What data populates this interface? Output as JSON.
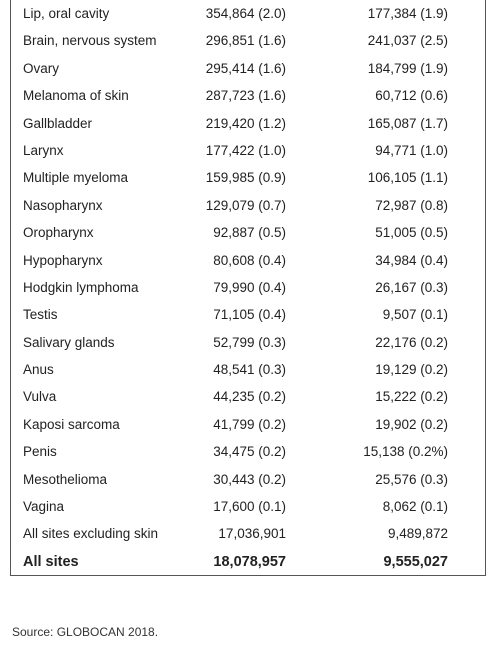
{
  "table": {
    "rows": [
      [
        "Lip, oral cavity",
        "354,864 (2.0)",
        "177,384 (1.9)"
      ],
      [
        "Brain, nervous system",
        "296,851 (1.6)",
        "241,037 (2.5)"
      ],
      [
        "Ovary",
        "295,414 (1.6)",
        "184,799 (1.9)"
      ],
      [
        "Melanoma of skin",
        "287,723 (1.6)",
        "60,712 (0.6)"
      ],
      [
        "Gallbladder",
        "219,420 (1.2)",
        "165,087 (1.7)"
      ],
      [
        "Larynx",
        "177,422 (1.0)",
        "94,771 (1.0)"
      ],
      [
        "Multiple myeloma",
        "159,985 (0.9)",
        "106,105 (1.1)"
      ],
      [
        "Nasopharynx",
        "129,079 (0.7)",
        "72,987 (0.8)"
      ],
      [
        "Oropharynx",
        "92,887 (0.5)",
        "51,005 (0.5)"
      ],
      [
        "Hypopharynx",
        "80,608 (0.4)",
        "34,984 (0.4)"
      ],
      [
        "Hodgkin lymphoma",
        "79,990 (0.4)",
        "26,167 (0.3)"
      ],
      [
        "Testis",
        "71,105 (0.4)",
        "9,507 (0.1)"
      ],
      [
        "Salivary glands",
        "52,799 (0.3)",
        "22,176 (0.2)"
      ],
      [
        "Anus",
        "48,541 (0.3)",
        "19,129 (0.2)"
      ],
      [
        "Vulva",
        "44,235 (0.2)",
        "15,222 (0.2)"
      ],
      [
        "Kaposi sarcoma",
        "41,799 (0.2)",
        "19,902 (0.2)"
      ],
      [
        "Penis",
        "34,475 (0.2)",
        "15,138 (0.2%)"
      ],
      [
        "Mesothelioma",
        "30,443 (0.2)",
        "25,576 (0.3)"
      ],
      [
        "Vagina",
        "17,600 (0.1)",
        "8,062 (0.1)"
      ],
      [
        "All sites excluding skin",
        "17,036,901",
        "9,489,872"
      ]
    ],
    "total": [
      "All sites",
      "18,078,957",
      "9,555,027"
    ]
  },
  "source": "Source: GLOBOCAN 2018."
}
